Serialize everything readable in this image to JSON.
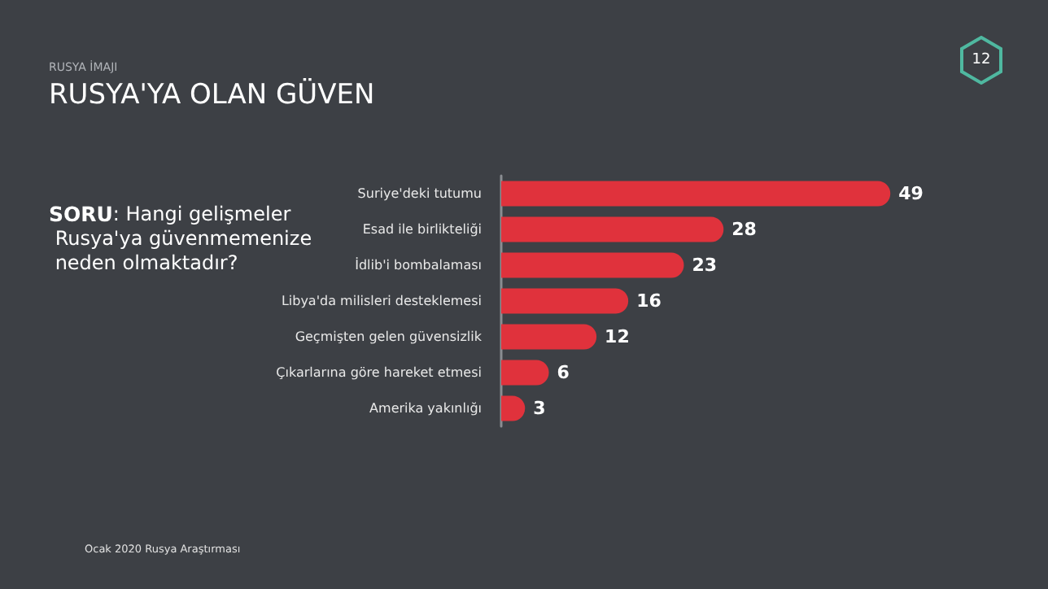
{
  "chart_data": {
    "type": "bar",
    "orientation": "horizontal",
    "data_labels": true,
    "subtitle": "RUSYA İMAJI",
    "title": "RUSYA'YA OLAN GÜVEN",
    "annotations": [
      "SORU: Hangi gelişmeler Rusya'ya güvenmemenize neden olmaktadır?",
      "Ocak 2020 Rusya Araştırması",
      "12"
    ],
    "categories": [
      "Suriye'deki tutumu",
      "Esad ile birlikteliği",
      "İdlib'i bombalaması",
      "Libya'da milisleri desteklemesi",
      "Geçmişten gelen güvensizlik",
      "Çıkarlarına göre hareket etmesi",
      "Amerika yakınlığı"
    ],
    "values": [
      49,
      28,
      23,
      16,
      12,
      6,
      3
    ],
    "color": "#e0323c"
  }
}
